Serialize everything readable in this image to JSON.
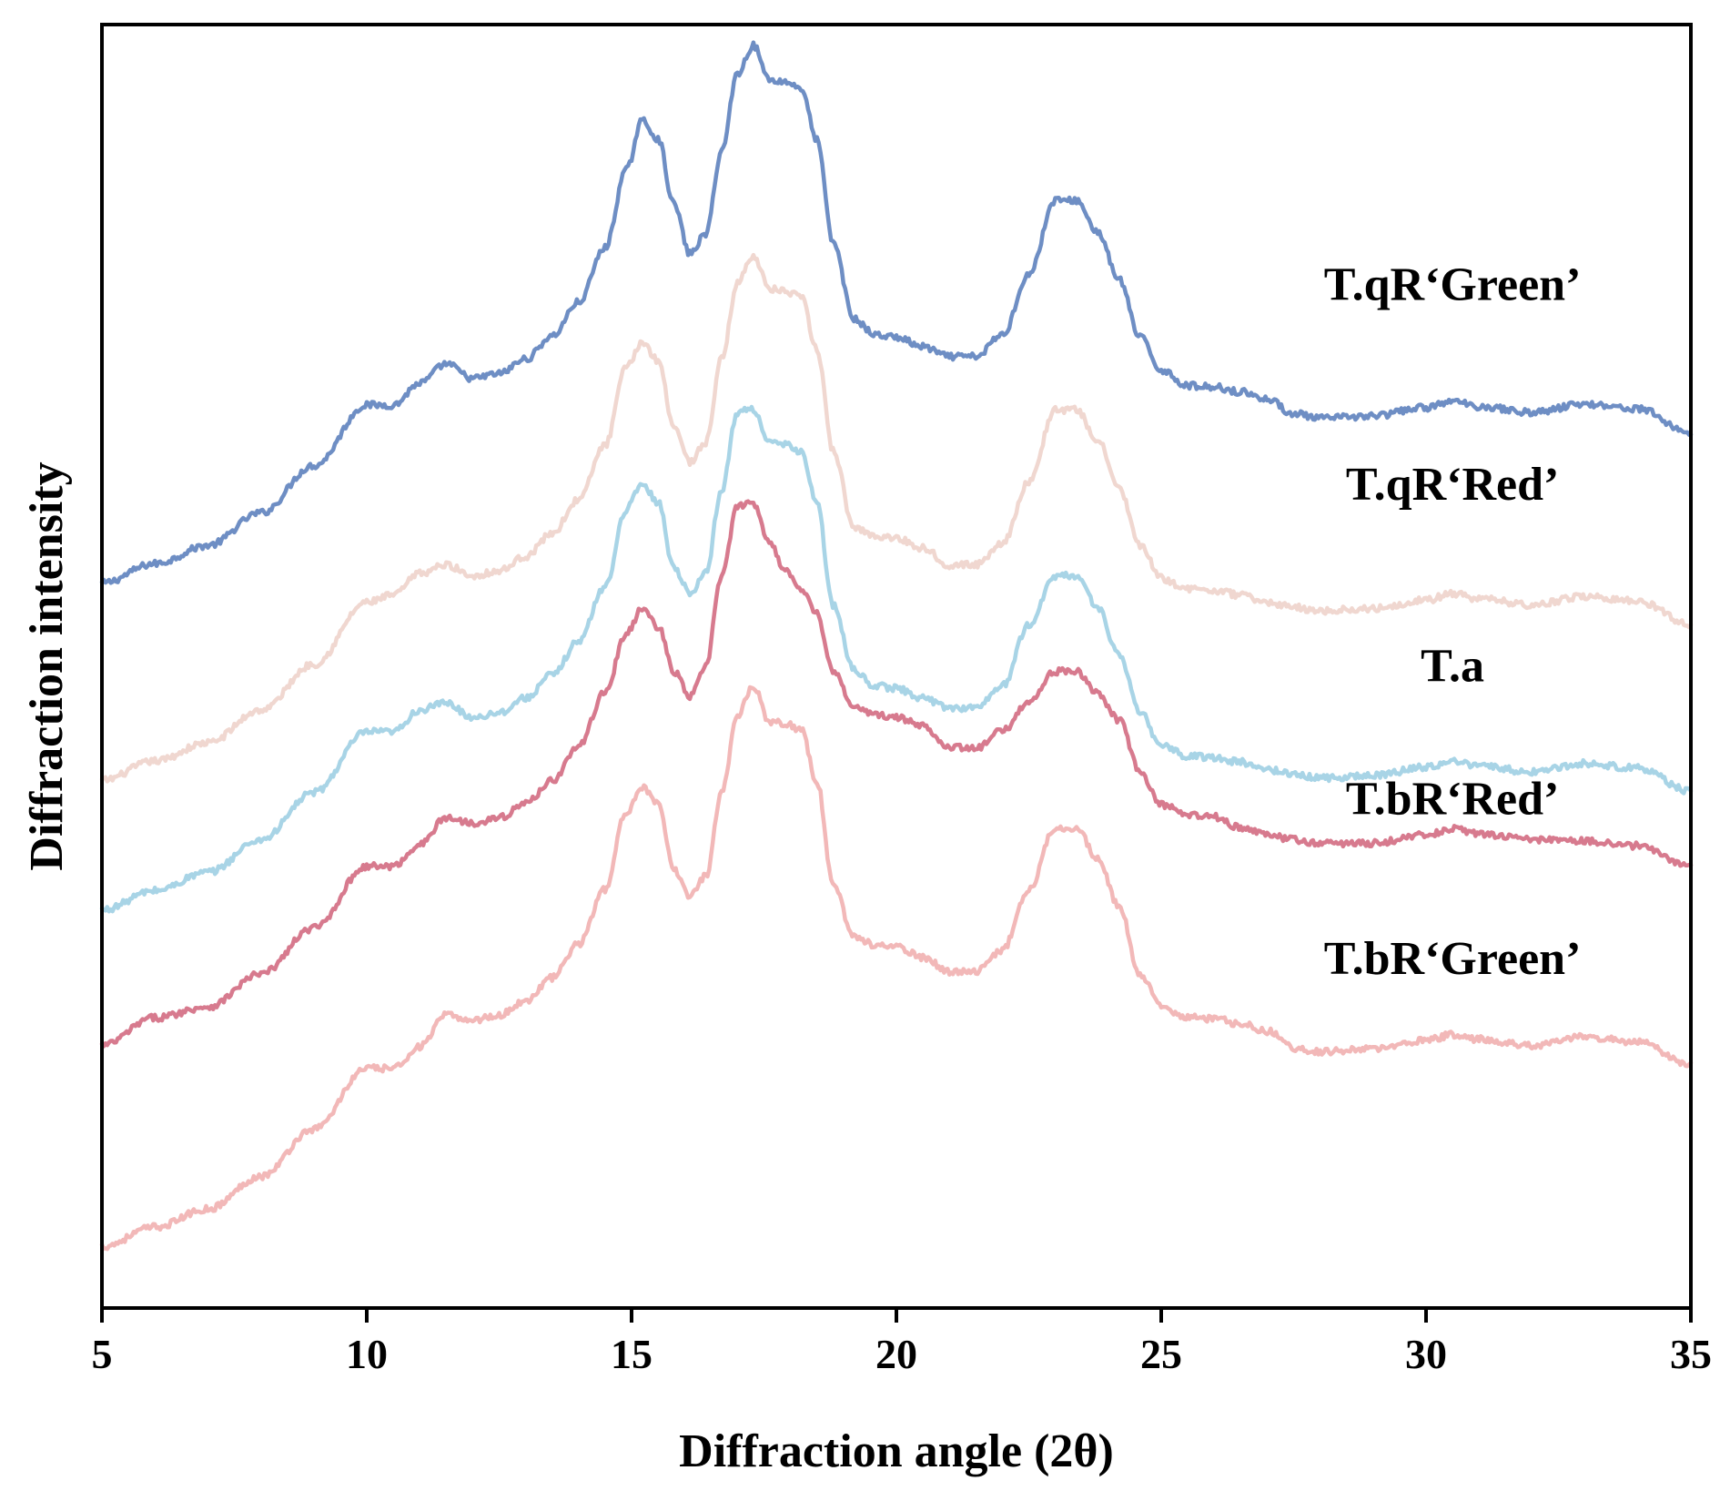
{
  "chart_data": {
    "type": "line",
    "title": "",
    "xlabel": "Diffraction angle (2θ)",
    "ylabel": "Diffraction intensity",
    "xlim": [
      5,
      35
    ],
    "ylim": [
      0,
      100
    ],
    "xticks": [
      5,
      10,
      15,
      20,
      25,
      30,
      35
    ],
    "grid": false,
    "legend": "inline labels on right",
    "series": [
      {
        "name": "T.qR‘Green’",
        "color": "#6e8ec4",
        "points": [
          [
            5,
            55.6
          ],
          [
            6,
            57.2
          ],
          [
            7,
            58.7
          ],
          [
            8,
            61.4
          ],
          [
            9,
            65.3
          ],
          [
            10,
            70.3
          ],
          [
            10.5,
            70.3
          ],
          [
            11,
            72.1
          ],
          [
            11.5,
            73.7
          ],
          [
            12,
            72.5
          ],
          [
            12.5,
            72.9
          ],
          [
            13,
            74.1
          ],
          [
            13.5,
            76
          ],
          [
            14,
            78.8
          ],
          [
            14.5,
            83.3
          ],
          [
            14.9,
            89.7
          ],
          [
            15.2,
            93.8
          ],
          [
            15.5,
            92.3
          ],
          [
            15.8,
            86.9
          ],
          [
            16.1,
            82.8
          ],
          [
            16.4,
            84.4
          ],
          [
            16.7,
            91.3
          ],
          [
            17,
            97.7
          ],
          [
            17.3,
            100
          ],
          [
            17.6,
            97.2
          ],
          [
            17.9,
            97
          ],
          [
            18.2,
            96.5
          ],
          [
            18.5,
            92.2
          ],
          [
            18.8,
            83.8
          ],
          [
            19.2,
            77.4
          ],
          [
            19.6,
            76.1
          ],
          [
            20,
            75.9
          ],
          [
            20.5,
            75.1
          ],
          [
            21,
            74.3
          ],
          [
            21.5,
            74.3
          ],
          [
            22,
            76.1
          ],
          [
            22.5,
            81.1
          ],
          [
            23,
            87.2
          ],
          [
            23.4,
            87.2
          ],
          [
            23.8,
            84.6
          ],
          [
            24.2,
            80.7
          ],
          [
            24.6,
            75.9
          ],
          [
            25,
            73.2
          ],
          [
            25.5,
            71.9
          ],
          [
            26,
            71.8
          ],
          [
            26.5,
            71.4
          ],
          [
            27,
            70.8
          ],
          [
            27.5,
            69.6
          ],
          [
            28,
            69.2
          ],
          [
            29,
            69.4
          ],
          [
            30,
            70.1
          ],
          [
            30.5,
            70.6
          ],
          [
            31,
            70.2
          ],
          [
            32,
            69.7
          ],
          [
            33,
            70.4
          ],
          [
            34,
            70
          ],
          [
            35,
            68
          ]
        ]
      },
      {
        "name": "T.qR‘Red’",
        "color": "#f0d7d0",
        "points": [
          [
            5,
            39.3
          ],
          [
            6,
            40.9
          ],
          [
            7,
            42.4
          ],
          [
            8,
            45.1
          ],
          [
            9,
            48.9
          ],
          [
            10,
            54
          ],
          [
            10.5,
            54.6
          ],
          [
            11,
            56.4
          ],
          [
            11.5,
            57.1
          ],
          [
            12,
            56.2
          ],
          [
            12.5,
            56.6
          ],
          [
            13,
            57.8
          ],
          [
            13.5,
            59.7
          ],
          [
            14,
            62.5
          ],
          [
            14.5,
            67
          ],
          [
            14.9,
            73.4
          ],
          [
            15.2,
            75.5
          ],
          [
            15.5,
            74
          ],
          [
            15.8,
            68.6
          ],
          [
            16.1,
            65.6
          ],
          [
            16.4,
            67.2
          ],
          [
            16.7,
            74.1
          ],
          [
            17,
            80.4
          ],
          [
            17.3,
            82.7
          ],
          [
            17.6,
            79.9
          ],
          [
            17.9,
            79.7
          ],
          [
            18.2,
            79.2
          ],
          [
            18.5,
            74.9
          ],
          [
            18.8,
            66.6
          ],
          [
            19.2,
            60.2
          ],
          [
            19.6,
            59.5
          ],
          [
            20,
            59.3
          ],
          [
            20.5,
            58.5
          ],
          [
            21,
            57.1
          ],
          [
            21.5,
            57.1
          ],
          [
            22,
            58.9
          ],
          [
            22.5,
            63.9
          ],
          [
            23,
            69.9
          ],
          [
            23.4,
            69.9
          ],
          [
            23.8,
            67.4
          ],
          [
            24.2,
            63.5
          ],
          [
            24.6,
            58.7
          ],
          [
            25,
            56
          ],
          [
            25.5,
            55.1
          ],
          [
            26,
            55
          ],
          [
            26.5,
            54.6
          ],
          [
            27,
            54
          ],
          [
            27.5,
            53.6
          ],
          [
            28,
            53.3
          ],
          [
            29,
            53.5
          ],
          [
            30,
            54.2
          ],
          [
            30.5,
            54.7
          ],
          [
            31,
            54.3
          ],
          [
            32,
            53.8
          ],
          [
            33,
            54.5
          ],
          [
            34,
            54.1
          ],
          [
            35,
            52.2
          ]
        ]
      },
      {
        "name": "T.a",
        "color": "#a8d4e6",
        "points": [
          [
            5,
            28.6
          ],
          [
            6,
            30.2
          ],
          [
            7,
            31.7
          ],
          [
            8,
            34.4
          ],
          [
            9,
            38.3
          ],
          [
            10,
            43.3
          ],
          [
            10.5,
            43.3
          ],
          [
            11,
            45.1
          ],
          [
            11.5,
            45.7
          ],
          [
            12,
            44.5
          ],
          [
            12.5,
            44.9
          ],
          [
            13,
            46.1
          ],
          [
            13.5,
            48
          ],
          [
            14,
            50.8
          ],
          [
            14.5,
            55.3
          ],
          [
            14.9,
            61.7
          ],
          [
            15.2,
            63.8
          ],
          [
            15.5,
            62.3
          ],
          [
            15.8,
            56.9
          ],
          [
            16.1,
            54.8
          ],
          [
            16.4,
            56.4
          ],
          [
            16.7,
            63.3
          ],
          [
            17,
            69.7
          ],
          [
            17.3,
            70
          ],
          [
            17.6,
            67.2
          ],
          [
            17.9,
            67
          ],
          [
            18.2,
            66.5
          ],
          [
            18.5,
            62.2
          ],
          [
            18.8,
            53.8
          ],
          [
            19.2,
            48.4
          ],
          [
            19.6,
            47.1
          ],
          [
            20,
            46.9
          ],
          [
            20.5,
            46.1
          ],
          [
            21,
            45.3
          ],
          [
            21.5,
            45.3
          ],
          [
            22,
            47.1
          ],
          [
            22.5,
            52.1
          ],
          [
            23,
            56.2
          ],
          [
            23.4,
            56.2
          ],
          [
            23.8,
            53.6
          ],
          [
            24.2,
            49.7
          ],
          [
            24.6,
            44.9
          ],
          [
            25,
            42.2
          ],
          [
            25.5,
            41.3
          ],
          [
            26,
            41.2
          ],
          [
            26.5,
            40.8
          ],
          [
            27,
            40.2
          ],
          [
            27.5,
            39.8
          ],
          [
            28,
            39.5
          ],
          [
            29,
            39.7
          ],
          [
            30,
            40.4
          ],
          [
            30.5,
            40.9
          ],
          [
            31,
            40.5
          ],
          [
            32,
            40
          ],
          [
            33,
            40.7
          ],
          [
            34,
            40.3
          ],
          [
            35,
            38.4
          ]
        ]
      },
      {
        "name": "T.bR‘Red’",
        "color": "#d77a8e",
        "points": [
          [
            5,
            17.4
          ],
          [
            6,
            19.7
          ],
          [
            7,
            20.6
          ],
          [
            8,
            23.3
          ],
          [
            9,
            27.1
          ],
          [
            10,
            32.2
          ],
          [
            10.5,
            32.2
          ],
          [
            11,
            34
          ],
          [
            11.5,
            36.2
          ],
          [
            12,
            35.8
          ],
          [
            12.5,
            36.2
          ],
          [
            13,
            37.4
          ],
          [
            13.5,
            39.3
          ],
          [
            14,
            42.1
          ],
          [
            14.5,
            46.6
          ],
          [
            14.9,
            51.4
          ],
          [
            15.2,
            53.5
          ],
          [
            15.5,
            52
          ],
          [
            15.8,
            48.3
          ],
          [
            16.1,
            46.2
          ],
          [
            16.4,
            48.7
          ],
          [
            16.7,
            56.2
          ],
          [
            17,
            61.9
          ],
          [
            17.3,
            62.2
          ],
          [
            17.6,
            59.1
          ],
          [
            17.9,
            56.6
          ],
          [
            18.2,
            55.2
          ],
          [
            18.5,
            53.1
          ],
          [
            18.8,
            48.3
          ],
          [
            19.2,
            45.4
          ],
          [
            19.6,
            44.7
          ],
          [
            20,
            44.5
          ],
          [
            20.5,
            43.8
          ],
          [
            21,
            42.1
          ],
          [
            21.5,
            41.9
          ],
          [
            22,
            43.4
          ],
          [
            22.5,
            45.8
          ],
          [
            23,
            48.3
          ],
          [
            23.4,
            48.3
          ],
          [
            23.8,
            46.5
          ],
          [
            24.2,
            44.3
          ],
          [
            24.6,
            40
          ],
          [
            25,
            37.3
          ],
          [
            25.5,
            36.4
          ],
          [
            26,
            36.3
          ],
          [
            26.5,
            35.4
          ],
          [
            27,
            34.8
          ],
          [
            27.5,
            34.4
          ],
          [
            28,
            34.1
          ],
          [
            29,
            34.1
          ],
          [
            30,
            34.8
          ],
          [
            30.5,
            35.3
          ],
          [
            31,
            34.9
          ],
          [
            32,
            34.4
          ],
          [
            33,
            34.3
          ],
          [
            34,
            33.9
          ],
          [
            35,
            32.2
          ]
        ]
      },
      {
        "name": "T.bR‘Green’",
        "color": "#f2b8b8",
        "points": [
          [
            5,
            0.8
          ],
          [
            6,
            2.4
          ],
          [
            7,
            3.9
          ],
          [
            8,
            6.6
          ],
          [
            9,
            10.5
          ],
          [
            10,
            15.5
          ],
          [
            10.5,
            15.5
          ],
          [
            11,
            17.3
          ],
          [
            11.5,
            19.9
          ],
          [
            12,
            19.5
          ],
          [
            12.5,
            19.9
          ],
          [
            13,
            21.1
          ],
          [
            13.5,
            23
          ],
          [
            14,
            25.8
          ],
          [
            14.5,
            30.3
          ],
          [
            14.9,
            36.7
          ],
          [
            15.2,
            38.8
          ],
          [
            15.5,
            37.3
          ],
          [
            15.8,
            31.9
          ],
          [
            16.1,
            29.8
          ],
          [
            16.4,
            31.4
          ],
          [
            16.7,
            38.3
          ],
          [
            17,
            44.7
          ],
          [
            17.3,
            47.1
          ],
          [
            17.6,
            44.2
          ],
          [
            17.9,
            44
          ],
          [
            18.2,
            43.5
          ],
          [
            18.5,
            39.2
          ],
          [
            18.8,
            30.8
          ],
          [
            19.2,
            26.4
          ],
          [
            19.6,
            25.7
          ],
          [
            20,
            25.5
          ],
          [
            20.5,
            24.7
          ],
          [
            21,
            23.5
          ],
          [
            21.5,
            23.5
          ],
          [
            22,
            25.3
          ],
          [
            22.5,
            30.3
          ],
          [
            23,
            35.4
          ],
          [
            23.4,
            35.4
          ],
          [
            23.8,
            32.8
          ],
          [
            24.2,
            28.9
          ],
          [
            24.6,
            23.3
          ],
          [
            25,
            20.6
          ],
          [
            25.5,
            19.7
          ],
          [
            26,
            19.6
          ],
          [
            26.5,
            19.2
          ],
          [
            27,
            18.6
          ],
          [
            27.5,
            17.2
          ],
          [
            28,
            16.9
          ],
          [
            29,
            17.1
          ],
          [
            30,
            17.8
          ],
          [
            30.5,
            18.3
          ],
          [
            31,
            17.9
          ],
          [
            32,
            17.4
          ],
          [
            33,
            18.1
          ],
          [
            34,
            17.7
          ],
          [
            35,
            15.8
          ]
        ]
      }
    ],
    "annotations": [
      {
        "text": "T.qR‘Green’",
        "series": 0,
        "at_x": 30.5,
        "at_y": 79
      },
      {
        "text": "T.qR‘Red’",
        "series": 1,
        "at_x": 30.5,
        "at_y": 62.5
      },
      {
        "text": "T.a",
        "series": 2,
        "at_x": 30.5,
        "at_y": 47.5
      },
      {
        "text": "T.bR‘Red’",
        "series": 3,
        "at_x": 30.5,
        "at_y": 36.5
      },
      {
        "text": "T.bR‘Green’",
        "series": 4,
        "at_x": 30.5,
        "at_y": 23.3
      }
    ]
  }
}
